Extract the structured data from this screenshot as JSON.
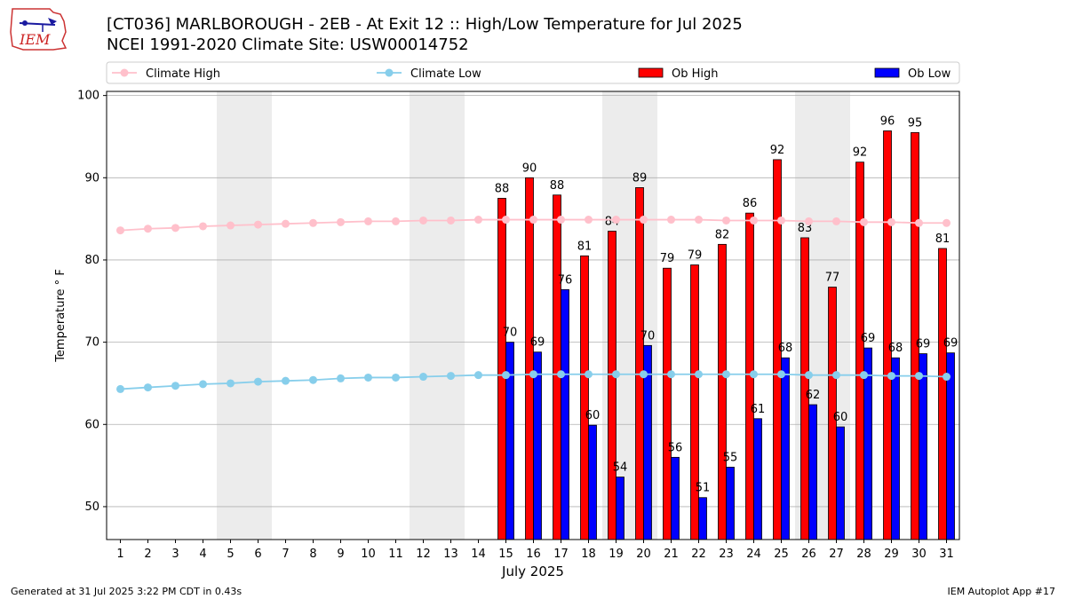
{
  "logo_text": "IEM",
  "title_line1": "[CT036] MARLBOROUGH - 2EB - At Exit 12  :: High/Low Temperature for Jul 2025",
  "title_line2": "NCEI 1991-2020 Climate Site: USW00014752",
  "footer_left": "Generated at 31 Jul 2025 3:22 PM CDT in 0.43s",
  "footer_right": "IEM Autoplot App #17",
  "colors": {
    "climate_high": "#ffc0cb",
    "climate_low": "#87ceeb",
    "ob_high": "#ff0000",
    "ob_low": "#0000ff",
    "weekend_shade": "#ececec",
    "grid": "#b0b0b0"
  },
  "chart_data": {
    "type": "bar",
    "xlabel": "July 2025",
    "ylabel": "Temperature ° F",
    "ylim": [
      46,
      100.5
    ],
    "yticks": [
      50,
      60,
      70,
      80,
      90,
      100
    ],
    "grid": "horizontal",
    "legend_position": "top",
    "categories": [
      "1",
      "2",
      "3",
      "4",
      "5",
      "6",
      "7",
      "8",
      "9",
      "10",
      "11",
      "12",
      "13",
      "14",
      "15",
      "16",
      "17",
      "18",
      "19",
      "20",
      "21",
      "22",
      "23",
      "24",
      "25",
      "26",
      "27",
      "28",
      "29",
      "30",
      "31"
    ],
    "shaded_days": [
      [
        5,
        6
      ],
      [
        12,
        13
      ],
      [
        19,
        20
      ],
      [
        26,
        27
      ]
    ],
    "series": [
      {
        "name": "Climate High",
        "kind": "line",
        "values": [
          83.6,
          83.8,
          83.9,
          84.1,
          84.2,
          84.3,
          84.4,
          84.5,
          84.6,
          84.7,
          84.7,
          84.8,
          84.8,
          84.9,
          84.9,
          84.9,
          84.9,
          84.9,
          84.9,
          84.9,
          84.9,
          84.9,
          84.8,
          84.8,
          84.8,
          84.7,
          84.7,
          84.6,
          84.6,
          84.5,
          84.5
        ]
      },
      {
        "name": "Climate Low",
        "kind": "line",
        "values": [
          64.3,
          64.5,
          64.7,
          64.9,
          65.0,
          65.2,
          65.3,
          65.4,
          65.6,
          65.7,
          65.7,
          65.8,
          65.9,
          66.0,
          66.0,
          66.1,
          66.1,
          66.1,
          66.1,
          66.1,
          66.1,
          66.1,
          66.1,
          66.1,
          66.1,
          66.0,
          66.0,
          66.0,
          65.9,
          65.9,
          65.8
        ]
      },
      {
        "name": "Ob High",
        "kind": "bar",
        "values": [
          null,
          null,
          null,
          null,
          null,
          null,
          null,
          null,
          null,
          null,
          null,
          null,
          null,
          null,
          87.5,
          90.0,
          87.9,
          80.5,
          83.5,
          88.8,
          79.0,
          79.4,
          81.9,
          85.7,
          92.2,
          82.7,
          76.7,
          91.9,
          95.7,
          95.5,
          81.4
        ],
        "labels": [
          "",
          "",
          "",
          "",
          "",
          "",
          "",
          "",
          "",
          "",
          "",
          "",
          "",
          "",
          "88",
          "90",
          "88",
          "81",
          "84",
          "89",
          "79",
          "79",
          "82",
          "86",
          "92",
          "83",
          "77",
          "92",
          "96",
          "95",
          "81"
        ]
      },
      {
        "name": "Ob Low",
        "kind": "bar",
        "values": [
          null,
          null,
          null,
          null,
          null,
          null,
          null,
          null,
          null,
          null,
          null,
          null,
          null,
          null,
          70.0,
          68.8,
          76.4,
          59.9,
          53.6,
          69.6,
          56.0,
          51.1,
          54.8,
          60.7,
          68.1,
          62.4,
          59.7,
          69.3,
          68.1,
          68.6,
          68.7
        ],
        "labels": [
          "",
          "",
          "",
          "",
          "",
          "",
          "",
          "",
          "",
          "",
          "",
          "",
          "",
          "",
          "70",
          "69",
          "76",
          "60",
          "54",
          "70",
          "56",
          "51",
          "55",
          "61",
          "68",
          "62",
          "60",
          "69",
          "68",
          "69",
          "69"
        ]
      }
    ]
  }
}
